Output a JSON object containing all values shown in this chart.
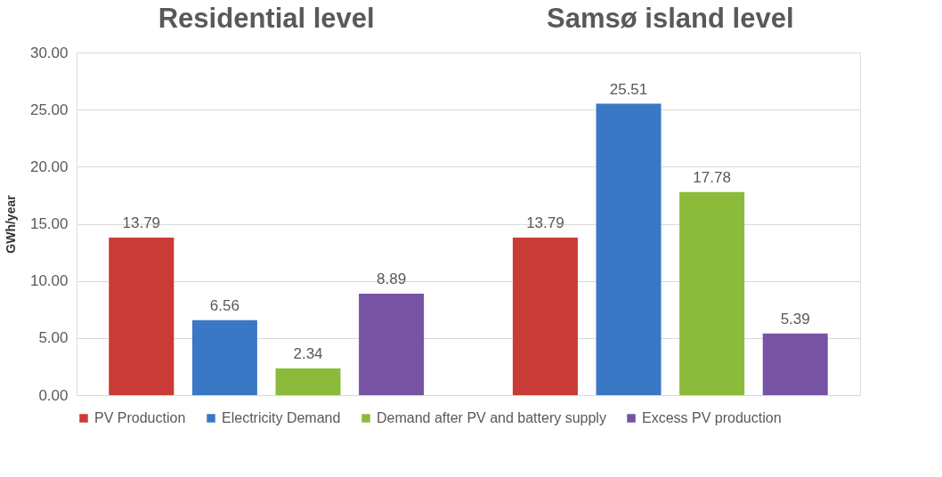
{
  "chart_data": {
    "type": "bar",
    "ylabel": "GWh/year",
    "categories": [
      "Residential level",
      "Samsø island level"
    ],
    "series": [
      {
        "name": "PV Production",
        "color": "#c93b36",
        "values": [
          13.79,
          13.79
        ]
      },
      {
        "name": "Electricity Demand",
        "color": "#3a78c6",
        "values": [
          6.56,
          25.51
        ]
      },
      {
        "name": "Demand after PV and battery supply",
        "color": "#8cbb3c",
        "values": [
          2.34,
          17.78
        ]
      },
      {
        "name": "Excess PV production",
        "color": "#7653a3",
        "values": [
          8.89,
          5.39
        ]
      }
    ],
    "ylim": [
      0,
      30
    ],
    "yticks": [
      {
        "value": 0,
        "label": "0.00"
      },
      {
        "value": 5,
        "label": "5.00"
      },
      {
        "value": 10,
        "label": "10.00"
      },
      {
        "value": 15,
        "label": "15.00"
      },
      {
        "value": 20,
        "label": "20.00"
      },
      {
        "value": 25,
        "label": "25.00"
      },
      {
        "value": 30,
        "label": "30.00"
      }
    ],
    "grid": "y",
    "data_labels": true,
    "legend": "bottom"
  }
}
